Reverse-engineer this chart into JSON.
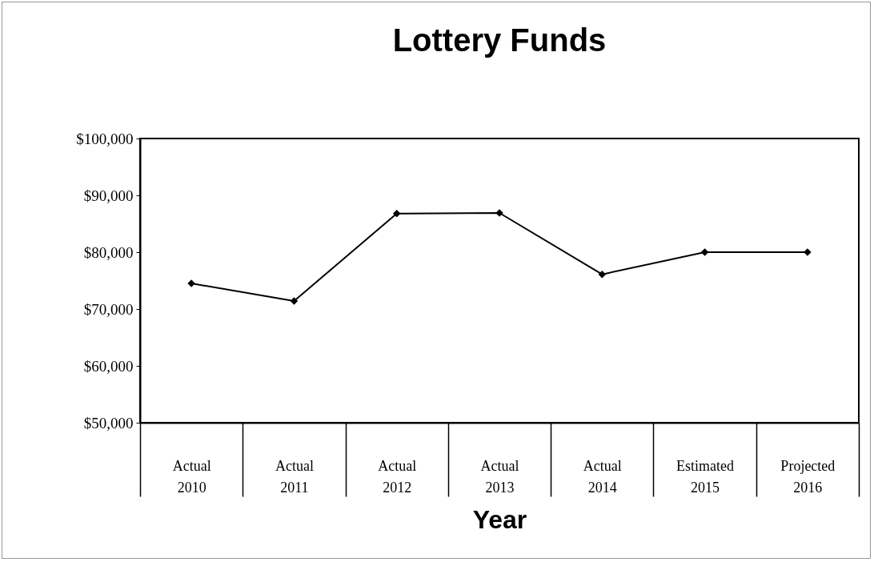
{
  "chart_data": {
    "type": "line",
    "title": "Lottery Funds",
    "xlabel": "Year",
    "categories": [
      "Actual 2010",
      "Actual 2011",
      "Actual 2012",
      "Actual 2013",
      "Actual 2014",
      "Estimated 2015",
      "Projected 2016"
    ],
    "series": [
      {
        "color": "#000000",
        "values": [
          74500,
          71400,
          86800,
          86900,
          76100,
          80000,
          80000
        ]
      }
    ],
    "ylim": [
      50000,
      100000
    ],
    "yticks": [
      {
        "value": 50000,
        "label": "$50,000"
      },
      {
        "value": 60000,
        "label": "$60,000"
      },
      {
        "value": 70000,
        "label": "$70,000"
      },
      {
        "value": 80000,
        "label": "$80,000"
      },
      {
        "value": 90000,
        "label": "$90,000"
      },
      {
        "value": 100000,
        "label": "$100,000"
      }
    ],
    "grid": false,
    "legend": false,
    "marker": "diamond",
    "line_style": "solid"
  }
}
